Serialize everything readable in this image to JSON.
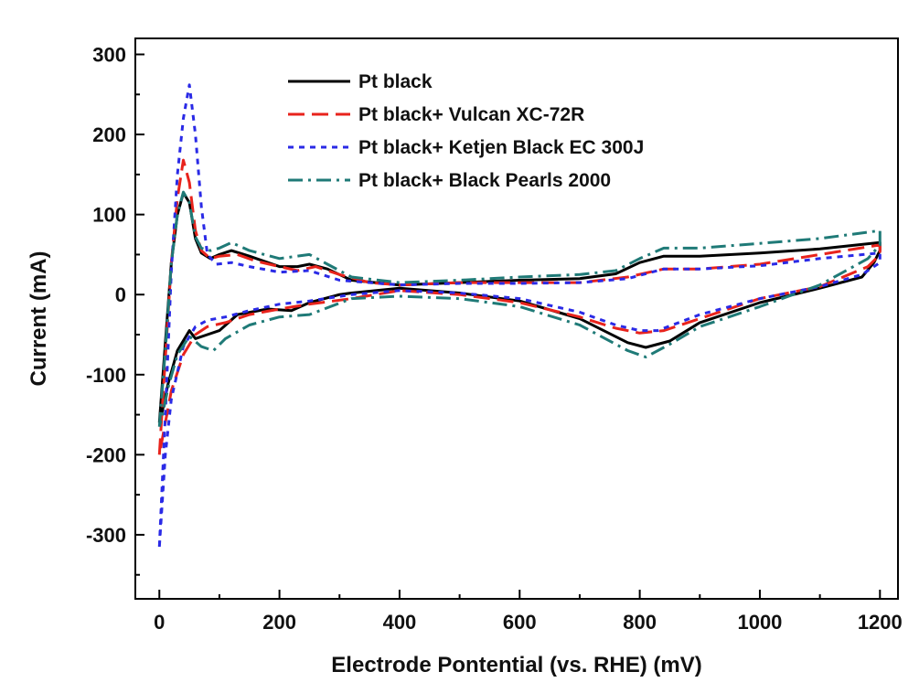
{
  "chart_data": {
    "type": "line",
    "title": "",
    "xlabel": "Electrode Pontential (vs. RHE) (mV)",
    "ylabel": "Current (mA)",
    "xlim": [
      -40,
      1230
    ],
    "ylim": [
      -380,
      320
    ],
    "xticks": [
      0,
      200,
      400,
      600,
      800,
      1000,
      1200
    ],
    "yticks": [
      -300,
      -200,
      -100,
      0,
      100,
      200,
      300
    ],
    "xtick_labels": [
      "0",
      "200",
      "400",
      "600",
      "800",
      "1000",
      "1200"
    ],
    "ytick_labels": [
      "-300",
      "-200",
      "-100",
      "0",
      "100",
      "200",
      "300"
    ],
    "grid": false,
    "legend_position": "top-center",
    "series": [
      {
        "name": "Pt black",
        "color": "#000000",
        "dash": "solid",
        "points": [
          [
            0,
            -160
          ],
          [
            10,
            -60
          ],
          [
            20,
            40
          ],
          [
            30,
            100
          ],
          [
            40,
            127
          ],
          [
            50,
            115
          ],
          [
            60,
            70
          ],
          [
            70,
            52
          ],
          [
            85,
            45
          ],
          [
            100,
            50
          ],
          [
            120,
            55
          ],
          [
            150,
            48
          ],
          [
            200,
            35
          ],
          [
            230,
            35
          ],
          [
            250,
            38
          ],
          [
            280,
            32
          ],
          [
            320,
            18
          ],
          [
            400,
            12
          ],
          [
            500,
            15
          ],
          [
            600,
            18
          ],
          [
            700,
            20
          ],
          [
            760,
            26
          ],
          [
            800,
            40
          ],
          [
            840,
            48
          ],
          [
            900,
            48
          ],
          [
            1000,
            52
          ],
          [
            1100,
            57
          ],
          [
            1200,
            65
          ],
          [
            1200,
            55
          ],
          [
            1190,
            40
          ],
          [
            1170,
            22
          ],
          [
            1100,
            8
          ],
          [
            1000,
            -10
          ],
          [
            900,
            -35
          ],
          [
            850,
            -58
          ],
          [
            810,
            -66
          ],
          [
            780,
            -60
          ],
          [
            700,
            -30
          ],
          [
            600,
            -8
          ],
          [
            500,
            2
          ],
          [
            400,
            8
          ],
          [
            320,
            2
          ],
          [
            300,
            0
          ],
          [
            250,
            -10
          ],
          [
            220,
            -20
          ],
          [
            180,
            -18
          ],
          [
            130,
            -25
          ],
          [
            100,
            -45
          ],
          [
            80,
            -50
          ],
          [
            60,
            -55
          ],
          [
            50,
            -45
          ],
          [
            30,
            -70
          ],
          [
            15,
            -110
          ],
          [
            5,
            -145
          ],
          [
            0,
            -160
          ]
        ]
      },
      {
        "name": "Pt black+ Vulcan XC-72R",
        "color": "#e8231c",
        "dash": "18 8",
        "points": [
          [
            0,
            -200
          ],
          [
            10,
            -80
          ],
          [
            20,
            40
          ],
          [
            30,
            120
          ],
          [
            40,
            168
          ],
          [
            50,
            140
          ],
          [
            60,
            80
          ],
          [
            70,
            55
          ],
          [
            85,
            45
          ],
          [
            100,
            48
          ],
          [
            130,
            50
          ],
          [
            160,
            42
          ],
          [
            200,
            35
          ],
          [
            230,
            30
          ],
          [
            260,
            35
          ],
          [
            300,
            25
          ],
          [
            350,
            15
          ],
          [
            400,
            12
          ],
          [
            500,
            15
          ],
          [
            600,
            15
          ],
          [
            700,
            15
          ],
          [
            780,
            22
          ],
          [
            840,
            32
          ],
          [
            900,
            32
          ],
          [
            1000,
            38
          ],
          [
            1100,
            50
          ],
          [
            1200,
            62
          ],
          [
            1200,
            50
          ],
          [
            1180,
            35
          ],
          [
            1100,
            10
          ],
          [
            1000,
            -5
          ],
          [
            900,
            -30
          ],
          [
            840,
            -45
          ],
          [
            800,
            -48
          ],
          [
            760,
            -42
          ],
          [
            700,
            -28
          ],
          [
            600,
            -10
          ],
          [
            500,
            0
          ],
          [
            400,
            5
          ],
          [
            320,
            -5
          ],
          [
            250,
            -12
          ],
          [
            200,
            -18
          ],
          [
            150,
            -25
          ],
          [
            110,
            -35
          ],
          [
            80,
            -40
          ],
          [
            60,
            -50
          ],
          [
            40,
            -75
          ],
          [
            20,
            -120
          ],
          [
            10,
            -160
          ],
          [
            0,
            -200
          ]
        ]
      },
      {
        "name": "Pt black+ Ketjen Black EC 300J",
        "color": "#2a2ae6",
        "dash": "6 6",
        "points": [
          [
            0,
            -315
          ],
          [
            10,
            -150
          ],
          [
            20,
            30
          ],
          [
            30,
            150
          ],
          [
            40,
            220
          ],
          [
            50,
            262
          ],
          [
            60,
            200
          ],
          [
            70,
            110
          ],
          [
            80,
            50
          ],
          [
            95,
            38
          ],
          [
            120,
            40
          ],
          [
            150,
            35
          ],
          [
            200,
            28
          ],
          [
            250,
            30
          ],
          [
            300,
            18
          ],
          [
            400,
            12
          ],
          [
            500,
            14
          ],
          [
            600,
            14
          ],
          [
            700,
            15
          ],
          [
            780,
            20
          ],
          [
            840,
            32
          ],
          [
            900,
            32
          ],
          [
            1000,
            36
          ],
          [
            1100,
            45
          ],
          [
            1200,
            52
          ],
          [
            1200,
            40
          ],
          [
            1170,
            25
          ],
          [
            1100,
            10
          ],
          [
            1000,
            -5
          ],
          [
            900,
            -25
          ],
          [
            830,
            -45
          ],
          [
            800,
            -45
          ],
          [
            760,
            -38
          ],
          [
            700,
            -22
          ],
          [
            600,
            -5
          ],
          [
            500,
            2
          ],
          [
            400,
            5
          ],
          [
            320,
            0
          ],
          [
            250,
            -8
          ],
          [
            200,
            -12
          ],
          [
            150,
            -20
          ],
          [
            110,
            -28
          ],
          [
            80,
            -32
          ],
          [
            60,
            -40
          ],
          [
            40,
            -65
          ],
          [
            20,
            -130
          ],
          [
            10,
            -200
          ],
          [
            0,
            -315
          ]
        ]
      },
      {
        "name": "Pt black+ Black Pearls 2000",
        "color": "#1f7a77",
        "dash": "16 6 3 6",
        "points": [
          [
            0,
            -165
          ],
          [
            10,
            -70
          ],
          [
            20,
            40
          ],
          [
            30,
            100
          ],
          [
            40,
            128
          ],
          [
            50,
            115
          ],
          [
            60,
            72
          ],
          [
            70,
            58
          ],
          [
            85,
            55
          ],
          [
            100,
            58
          ],
          [
            120,
            65
          ],
          [
            150,
            55
          ],
          [
            200,
            45
          ],
          [
            250,
            50
          ],
          [
            280,
            38
          ],
          [
            320,
            22
          ],
          [
            400,
            15
          ],
          [
            500,
            18
          ],
          [
            600,
            22
          ],
          [
            700,
            25
          ],
          [
            760,
            30
          ],
          [
            800,
            45
          ],
          [
            840,
            58
          ],
          [
            900,
            58
          ],
          [
            1000,
            64
          ],
          [
            1100,
            70
          ],
          [
            1200,
            80
          ],
          [
            1200,
            62
          ],
          [
            1180,
            45
          ],
          [
            1100,
            12
          ],
          [
            1000,
            -15
          ],
          [
            900,
            -40
          ],
          [
            850,
            -62
          ],
          [
            810,
            -78
          ],
          [
            780,
            -70
          ],
          [
            700,
            -38
          ],
          [
            600,
            -15
          ],
          [
            500,
            -5
          ],
          [
            400,
            -2
          ],
          [
            320,
            -5
          ],
          [
            250,
            -25
          ],
          [
            200,
            -28
          ],
          [
            150,
            -38
          ],
          [
            110,
            -55
          ],
          [
            90,
            -70
          ],
          [
            70,
            -65
          ],
          [
            50,
            -52
          ],
          [
            30,
            -75
          ],
          [
            15,
            -115
          ],
          [
            5,
            -150
          ],
          [
            0,
            -165
          ]
        ]
      }
    ]
  }
}
